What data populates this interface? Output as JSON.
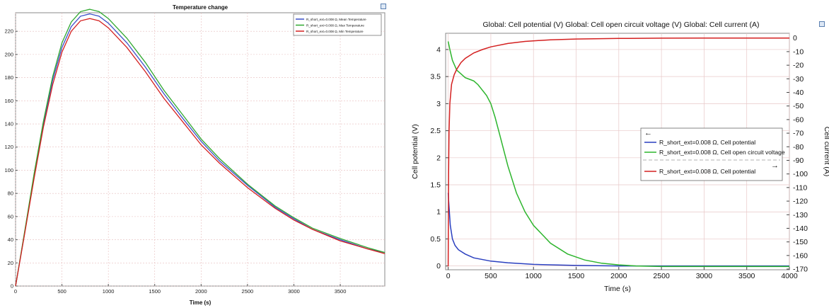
{
  "chart_data": [
    {
      "type": "line",
      "title": "Temperature change",
      "xlabel": "Time (s)",
      "ylabel": "",
      "xlim": [
        0,
        3980
      ],
      "ylim": [
        0,
        236
      ],
      "xticks": [
        0,
        500,
        1000,
        1500,
        2000,
        2500,
        3000,
        3500
      ],
      "yticks": [
        0,
        20,
        40,
        60,
        80,
        100,
        120,
        140,
        160,
        180,
        200,
        220
      ],
      "grid": true,
      "legend_position": "top-right",
      "series": [
        {
          "name": "R_short_ext=0.008 Ω, Mean Temperature",
          "color": "#3b4fc8",
          "x": [
            0,
            100,
            200,
            300,
            400,
            500,
            600,
            700,
            800,
            900,
            1000,
            1200,
            1400,
            1600,
            1800,
            2000,
            2200,
            2500,
            2800,
            3000,
            3200,
            3500,
            3800,
            3980
          ],
          "y": [
            0,
            47,
            95,
            140,
            178,
            206,
            224,
            233,
            235,
            233,
            227,
            210,
            189,
            166,
            145,
            125,
            108,
            87,
            68,
            58,
            49,
            40,
            32,
            29
          ]
        },
        {
          "name": "R_short_ext=0.008 Ω, Max Temperature",
          "color": "#2fa82f",
          "x": [
            0,
            100,
            200,
            300,
            400,
            500,
            600,
            700,
            800,
            900,
            1000,
            1200,
            1400,
            1600,
            1800,
            2000,
            2200,
            2500,
            2800,
            3000,
            3200,
            3500,
            3800,
            3980
          ],
          "y": [
            0,
            48,
            97,
            142,
            181,
            210,
            228,
            237,
            239,
            237,
            231,
            214,
            193,
            169,
            148,
            127,
            110,
            88,
            69,
            59,
            50,
            41,
            33,
            29
          ]
        },
        {
          "name": "R_short_ext=0.008 Ω, Min Temperature",
          "color": "#d42020",
          "x": [
            0,
            100,
            200,
            300,
            400,
            500,
            600,
            700,
            800,
            900,
            1000,
            1200,
            1400,
            1600,
            1800,
            2000,
            2200,
            2500,
            2800,
            3000,
            3200,
            3500,
            3800,
            3980
          ],
          "y": [
            0,
            46,
            93,
            137,
            174,
            202,
            220,
            229,
            231,
            229,
            223,
            206,
            185,
            162,
            142,
            122,
            106,
            85,
            67,
            57,
            49,
            39,
            32,
            28
          ]
        }
      ]
    },
    {
      "type": "line",
      "title": "Global: Cell potential (V) Global: Cell open circuit voltage (V) Global: Cell current (A)",
      "xlabel": "Time (s)",
      "ylabel": "Cell potential (V)",
      "y2label": "Cell current (A)",
      "xlim": [
        -30,
        4000
      ],
      "ylim": [
        -0.07,
        4.3
      ],
      "y2lim": [
        -170.5,
        3.5
      ],
      "xticks": [
        0,
        500,
        1000,
        1500,
        2000,
        2500,
        3000,
        3500,
        4000
      ],
      "yticks": [
        0,
        0.5,
        1,
        1.5,
        2,
        2.5,
        3,
        3.5,
        4
      ],
      "y2ticks": [
        0,
        -10,
        -20,
        -30,
        -40,
        -50,
        -60,
        -70,
        -80,
        -90,
        -100,
        -110,
        -120,
        -130,
        -140,
        -150,
        -160,
        -170
      ],
      "grid": true,
      "legend_position": "center-right",
      "legend_left_arrow": "←",
      "legend_right_arrow": "→",
      "series": [
        {
          "name": "R_short_ext=0.008 Ω, Cell potential",
          "axis": "left",
          "color": "#2a3fbf",
          "x": [
            0,
            10,
            25,
            50,
            80,
            120,
            200,
            300,
            500,
            700,
            1000,
            1500,
            2000,
            2500,
            3000,
            4000
          ],
          "y": [
            1.35,
            1.1,
            0.75,
            0.5,
            0.38,
            0.3,
            0.22,
            0.15,
            0.09,
            0.06,
            0.03,
            0.01,
            0.0,
            0.0,
            0.0,
            0.0
          ]
        },
        {
          "name": "R_short_ext=0.008 Ω, Cell open circuit voltage",
          "axis": "left",
          "color": "#2db52d",
          "x": [
            0,
            20,
            50,
            100,
            150,
            200,
            250,
            300,
            350,
            400,
            450,
            500,
            550,
            600,
            700,
            800,
            900,
            1000,
            1200,
            1400,
            1600,
            1800,
            2000,
            2200,
            2500,
            3000,
            3500,
            4000
          ],
          "y": [
            4.15,
            4.0,
            3.8,
            3.62,
            3.55,
            3.48,
            3.45,
            3.42,
            3.35,
            3.25,
            3.15,
            3.0,
            2.75,
            2.45,
            1.85,
            1.35,
            1.0,
            0.75,
            0.42,
            0.22,
            0.11,
            0.05,
            0.02,
            0.0,
            -0.01,
            -0.01,
            -0.01,
            -0.01
          ]
        },
        {
          "name": "R_short_ext=0.008 Ω, Cell potential",
          "axis": "right",
          "color": "#d42020",
          "x": [
            0,
            5,
            10,
            20,
            40,
            70,
            100,
            150,
            200,
            300,
            400,
            500,
            700,
            900,
            1200,
            1500,
            2000,
            2500,
            3000,
            4000
          ],
          "y": [
            -168,
            -100,
            -70,
            -48,
            -34,
            -27,
            -23,
            -18,
            -15,
            -11,
            -8.5,
            -6.5,
            -4,
            -2.5,
            -1.3,
            -0.7,
            -0.3,
            -0.1,
            0,
            0
          ]
        }
      ]
    }
  ]
}
